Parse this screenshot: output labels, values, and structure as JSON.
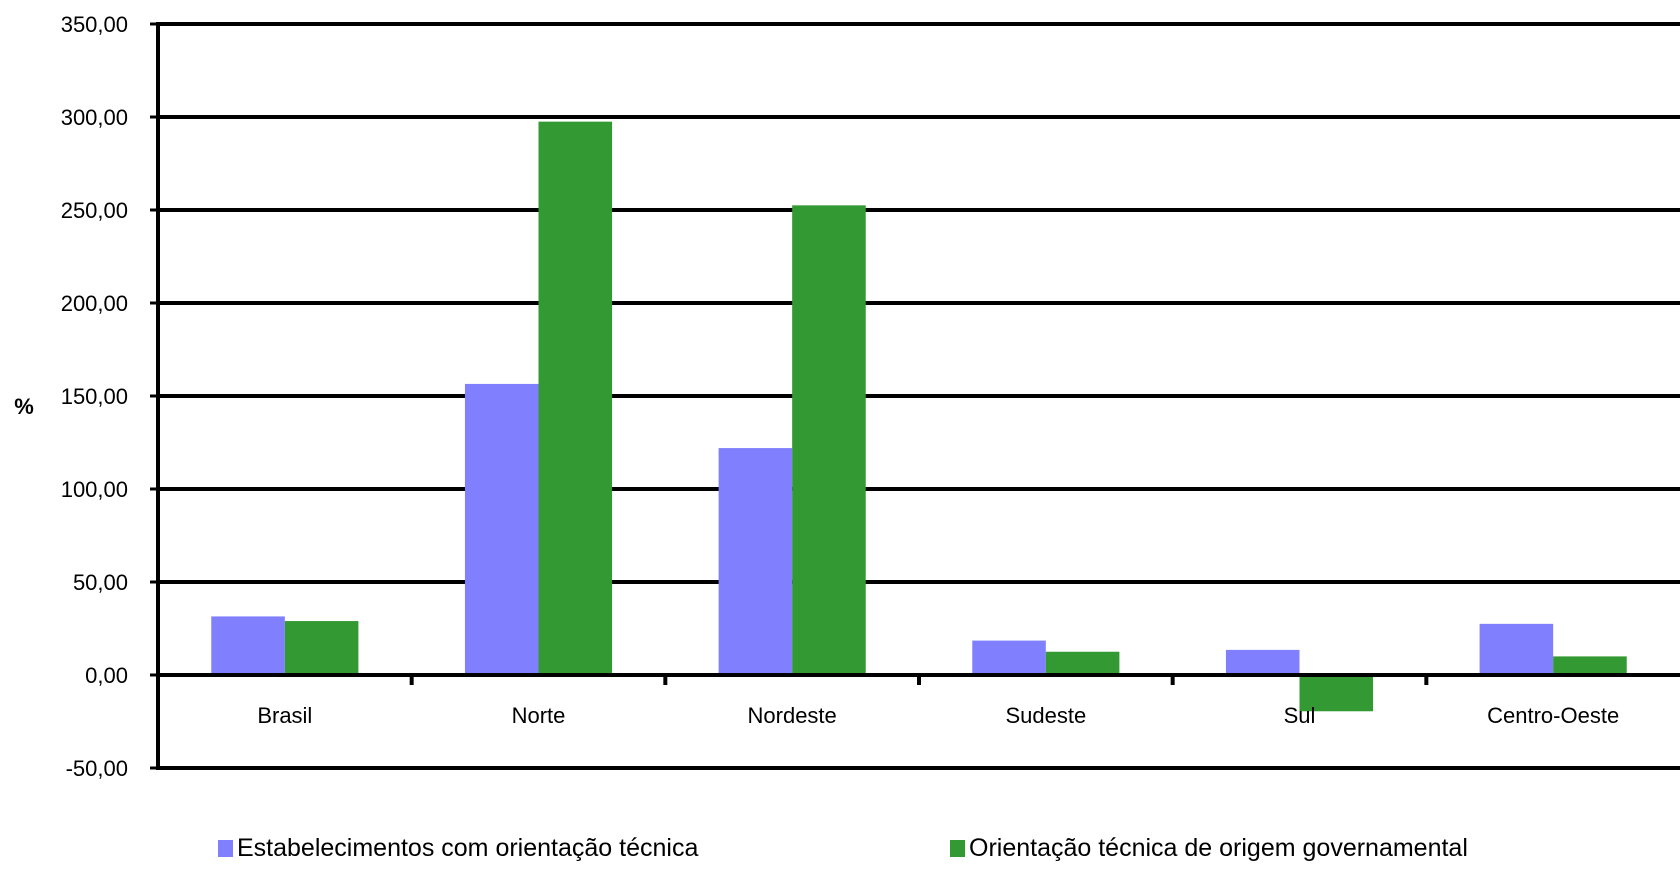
{
  "chart_data": {
    "type": "bar",
    "ylabel": "%",
    "xlabel": "",
    "ylim": [
      -50,
      350
    ],
    "yticks": [
      "350,00",
      "300,00",
      "250,00",
      "200,00",
      "150,00",
      "100,00",
      "50,00",
      "0,00",
      "-50,00"
    ],
    "ytick_values": [
      350,
      300,
      250,
      200,
      150,
      100,
      50,
      0,
      -50
    ],
    "categories": [
      "Brasil",
      "Norte",
      "Nordeste",
      "Sudeste",
      "Sul",
      "Centro-Oeste"
    ],
    "series": [
      {
        "name": "Estabelecimentos com orientação técnica",
        "color": "#8080ff",
        "values": [
          31.5,
          156.5,
          122.0,
          18.5,
          13.5,
          27.5
        ]
      },
      {
        "name": "Orientação técnica de origem governamental",
        "color": "#339933",
        "values": [
          29.0,
          297.5,
          252.5,
          12.5,
          -19.5,
          10.0
        ]
      }
    ],
    "grid": true,
    "legend_position": "bottom"
  }
}
